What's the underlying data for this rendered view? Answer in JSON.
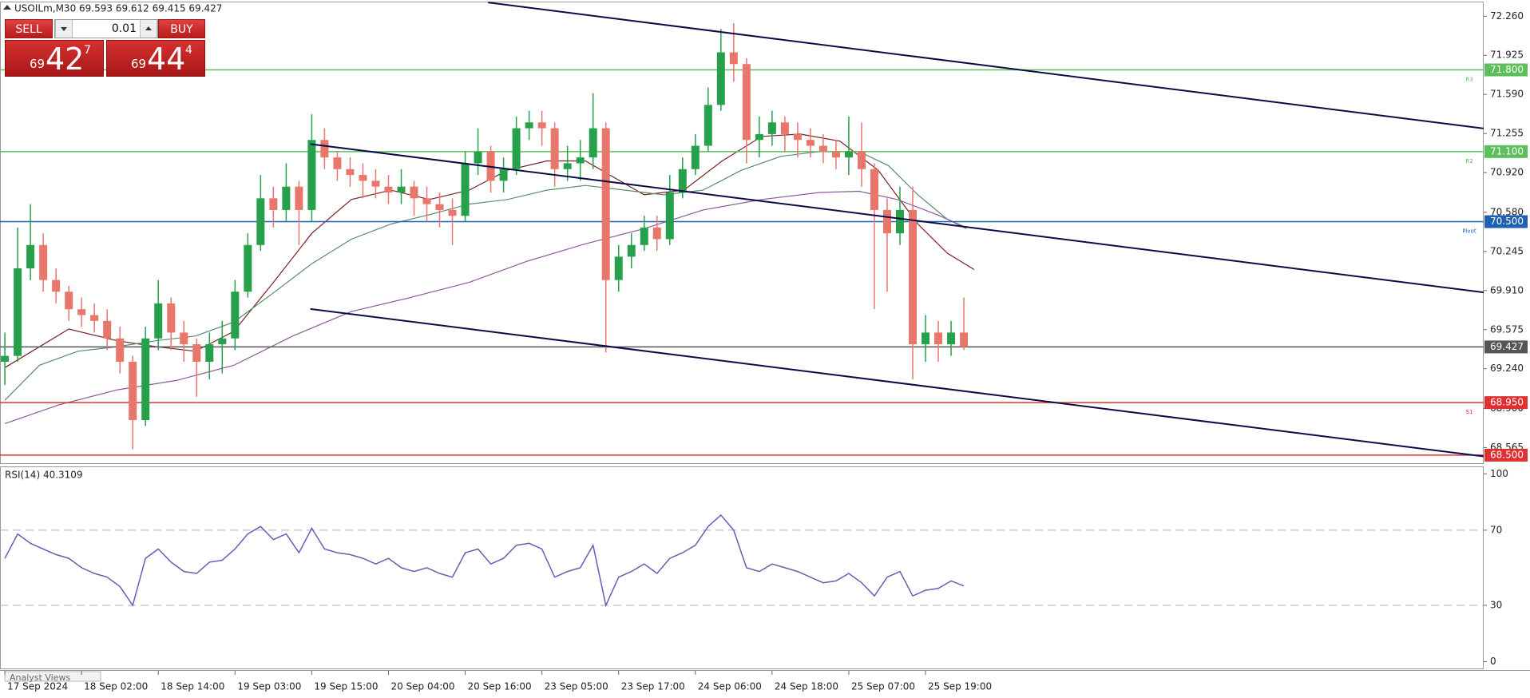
{
  "header": {
    "symbol_line": "USOILm,M30  69.593 69.612 69.415 69.427"
  },
  "trade_panel": {
    "sell_label": "SELL",
    "buy_label": "BUY",
    "lot": "0.01",
    "sell_price": {
      "big": "69",
      "main": "42",
      "small": "7"
    },
    "buy_price": {
      "big": "69",
      "main": "44",
      "small": "4"
    }
  },
  "footer_tab": "Analyst Views",
  "chart_data": [
    {
      "type": "candlestick",
      "up_color": "#26a04a",
      "down_color": "#e8766a",
      "xlim": [
        -0.38,
        115.65
      ],
      "ylim": [
        68.431,
        72.385
      ],
      "yticks": [
        {
          "value": 72.26,
          "label": "72.260"
        },
        {
          "value": 71.925,
          "label": "71.925"
        },
        {
          "value": 71.59,
          "label": "71.590"
        },
        {
          "value": 71.255,
          "label": "71.255"
        },
        {
          "value": 70.92,
          "label": "70.920"
        },
        {
          "value": 70.58,
          "label": "70.580"
        },
        {
          "value": 70.245,
          "label": "70.245"
        },
        {
          "value": 69.91,
          "label": "69.910"
        },
        {
          "value": 69.575,
          "label": "69.575"
        },
        {
          "value": 69.24,
          "label": "69.240"
        },
        {
          "value": 68.9,
          "label": "68.900"
        },
        {
          "value": 68.565,
          "label": "68.565"
        }
      ],
      "ohlc": [
        [
          69.3,
          69.55,
          69.1,
          69.35
        ],
        [
          69.35,
          70.45,
          69.3,
          70.1
        ],
        [
          70.1,
          70.65,
          70.0,
          70.3
        ],
        [
          70.3,
          70.4,
          69.9,
          70.0
        ],
        [
          70.0,
          70.1,
          69.8,
          69.9
        ],
        [
          69.9,
          69.95,
          69.65,
          69.75
        ],
        [
          69.75,
          69.85,
          69.6,
          69.7
        ],
        [
          69.7,
          69.8,
          69.55,
          69.65
        ],
        [
          69.65,
          69.75,
          69.4,
          69.5
        ],
        [
          69.5,
          69.6,
          69.2,
          69.3
        ],
        [
          69.3,
          69.35,
          68.55,
          68.8
        ],
        [
          68.8,
          69.6,
          68.75,
          69.5
        ],
        [
          69.5,
          70.0,
          69.4,
          69.8
        ],
        [
          69.8,
          69.85,
          69.4,
          69.55
        ],
        [
          69.55,
          69.65,
          69.3,
          69.45
        ],
        [
          69.45,
          69.5,
          69.0,
          69.3
        ],
        [
          69.3,
          69.55,
          69.15,
          69.45
        ],
        [
          69.45,
          69.65,
          69.2,
          69.5
        ],
        [
          69.5,
          70.0,
          69.4,
          69.9
        ],
        [
          69.9,
          70.4,
          69.85,
          70.3
        ],
        [
          70.3,
          70.9,
          70.25,
          70.7
        ],
        [
          70.7,
          70.8,
          70.45,
          70.6
        ],
        [
          70.6,
          71.0,
          70.5,
          70.8
        ],
        [
          70.8,
          70.85,
          70.3,
          70.6
        ],
        [
          70.6,
          71.42,
          70.5,
          71.2
        ],
        [
          71.2,
          71.3,
          70.95,
          71.05
        ],
        [
          71.05,
          71.1,
          70.85,
          70.95
        ],
        [
          70.95,
          71.05,
          70.8,
          70.9
        ],
        [
          70.9,
          71.0,
          70.7,
          70.85
        ],
        [
          70.85,
          70.95,
          70.7,
          70.8
        ],
        [
          70.8,
          70.9,
          70.65,
          70.75
        ],
        [
          70.75,
          70.95,
          70.65,
          70.8
        ],
        [
          70.8,
          70.85,
          70.55,
          70.7
        ],
        [
          70.7,
          70.8,
          70.5,
          70.65
        ],
        [
          70.65,
          70.75,
          70.45,
          70.6
        ],
        [
          70.6,
          70.7,
          70.3,
          70.55
        ],
        [
          70.55,
          71.1,
          70.5,
          71.0
        ],
        [
          71.0,
          71.3,
          70.9,
          71.1
        ],
        [
          71.1,
          71.15,
          70.75,
          70.85
        ],
        [
          70.85,
          71.05,
          70.75,
          70.95
        ],
        [
          70.95,
          71.4,
          70.9,
          71.3
        ],
        [
          71.3,
          71.45,
          71.2,
          71.35
        ],
        [
          71.35,
          71.45,
          71.15,
          71.3
        ],
        [
          71.3,
          71.35,
          70.8,
          70.95
        ],
        [
          70.95,
          71.15,
          70.85,
          71.0
        ],
        [
          71.0,
          71.2,
          70.85,
          71.05
        ],
        [
          71.05,
          71.6,
          70.95,
          71.3
        ],
        [
          71.3,
          71.35,
          69.38,
          70.0
        ],
        [
          70.0,
          70.3,
          69.9,
          70.2
        ],
        [
          70.2,
          70.4,
          70.1,
          70.3
        ],
        [
          70.3,
          70.55,
          70.25,
          70.45
        ],
        [
          70.45,
          70.55,
          70.25,
          70.35
        ],
        [
          70.35,
          70.9,
          70.3,
          70.75
        ],
        [
          70.75,
          71.05,
          70.7,
          70.95
        ],
        [
          70.95,
          71.25,
          70.9,
          71.15
        ],
        [
          71.15,
          71.65,
          71.1,
          71.5
        ],
        [
          71.5,
          72.15,
          71.45,
          71.95
        ],
        [
          71.95,
          72.2,
          71.7,
          71.85
        ],
        [
          71.85,
          71.9,
          71.0,
          71.2
        ],
        [
          71.2,
          71.4,
          71.05,
          71.25
        ],
        [
          71.25,
          71.45,
          71.15,
          71.35
        ],
        [
          71.35,
          71.4,
          71.1,
          71.25
        ],
        [
          71.25,
          71.35,
          71.05,
          71.2
        ],
        [
          71.2,
          71.3,
          71.05,
          71.15
        ],
        [
          71.15,
          71.25,
          71.0,
          71.1
        ],
        [
          71.1,
          71.2,
          70.95,
          71.05
        ],
        [
          71.05,
          71.4,
          70.9,
          71.1
        ],
        [
          71.1,
          71.35,
          70.8,
          70.95
        ],
        [
          70.95,
          71.0,
          69.75,
          70.6
        ],
        [
          70.6,
          70.7,
          69.9,
          70.4
        ],
        [
          70.4,
          70.8,
          70.3,
          70.6
        ],
        [
          70.6,
          70.8,
          69.15,
          69.45
        ],
        [
          69.45,
          69.7,
          69.3,
          69.55
        ],
        [
          69.55,
          69.65,
          69.3,
          69.45
        ],
        [
          69.45,
          69.65,
          69.35,
          69.55
        ],
        [
          69.55,
          69.85,
          69.4,
          69.427
        ]
      ],
      "series": [
        {
          "color": "#7a1f1f",
          "x": [
            0,
            5,
            8.8,
            11.8,
            14.9,
            17.9,
            21,
            24,
            27.1,
            30.2,
            33.2,
            36.3,
            39.3,
            42.4,
            45.4,
            50,
            53.1,
            56.1,
            59.2,
            62.2,
            65.3,
            68.3,
            71.4,
            73.7,
            75.8
          ],
          "values": [
            69.25,
            69.58,
            69.48,
            69.43,
            69.39,
            69.56,
            69.98,
            70.4,
            70.69,
            70.77,
            70.69,
            70.77,
            70.94,
            71.02,
            71.02,
            70.73,
            70.77,
            71.02,
            71.23,
            71.25,
            71.19,
            70.94,
            70.48,
            70.23,
            70.09
          ]
        },
        {
          "color": "#5a8a6e",
          "x": [
            0,
            2.7,
            5.7,
            8.8,
            11.8,
            14.9,
            17.9,
            21,
            24,
            27.1,
            30.2,
            33.2,
            36.3,
            39.3,
            42.4,
            45.4,
            48.5,
            51.5,
            54.6,
            57.6,
            60.7,
            63.7,
            66.8,
            69.1,
            71.4,
            73.7,
            75.2
          ],
          "values": [
            68.97,
            69.27,
            69.39,
            69.43,
            69.48,
            69.52,
            69.64,
            69.89,
            70.14,
            70.35,
            70.48,
            70.56,
            70.65,
            70.69,
            70.77,
            70.81,
            70.77,
            70.73,
            70.77,
            70.94,
            71.06,
            71.1,
            71.1,
            70.98,
            70.73,
            70.52,
            70.44
          ]
        },
        {
          "color": "#8e5a9a",
          "x": [
            0,
            4.2,
            8.8,
            13.4,
            17.9,
            22.5,
            27.1,
            31.7,
            36.3,
            40.8,
            45.4,
            50,
            54.6,
            59.2,
            63.7,
            66.8,
            69.8,
            72.9,
            75.2
          ],
          "values": [
            68.77,
            68.93,
            69.06,
            69.14,
            69.27,
            69.52,
            69.73,
            69.85,
            69.98,
            70.16,
            70.31,
            70.44,
            70.6,
            70.69,
            70.75,
            70.76,
            70.69,
            70.56,
            70.45
          ]
        }
      ],
      "trendlines": [
        {
          "color": "#0b0b4a",
          "x": [
            37.79,
            115.65
          ],
          "y": [
            72.377,
            71.298
          ]
        },
        {
          "color": "#0b0b4a",
          "x": [
            23.89,
            115.65
          ],
          "y": [
            71.165,
            69.894
          ]
        },
        {
          "color": "#0b0b4a",
          "x": [
            23.89,
            115.65
          ],
          "y": [
            69.752,
            68.489
          ]
        }
      ],
      "levels": [
        {
          "value": 71.8,
          "label": "71.800",
          "name": "R3",
          "color": "#5cbf5c"
        },
        {
          "value": 71.1,
          "label": "71.100",
          "name": "R2",
          "color": "#5cbf5c"
        },
        {
          "value": 70.5,
          "label": "70.500",
          "name": "Pivot",
          "color": "#1f5fb4"
        },
        {
          "value": 69.427,
          "label": "69.427",
          "color": "#555555"
        },
        {
          "value": 68.95,
          "label": "68.950",
          "name": "S1",
          "color": "#e03030"
        },
        {
          "value": 68.5,
          "label": "68.500",
          "color": "#e03030"
        }
      ]
    },
    {
      "type": "line",
      "title": "RSI(14) 40.3109",
      "color": "#6b5bb5",
      "xlim": [
        -0.38,
        115.65
      ],
      "ylim": [
        -3.6,
        103.1
      ],
      "yticks": [
        100,
        70,
        30,
        0
      ],
      "levels": [
        {
          "value": 70,
          "color": "#b8a6c8"
        },
        {
          "value": 30,
          "color": "#b8a6c8"
        }
      ],
      "values": [
        55,
        68,
        63,
        60,
        57,
        55,
        50,
        47,
        45,
        40,
        30,
        55,
        60,
        53,
        48,
        47,
        53,
        54,
        60,
        68,
        72,
        65,
        68,
        58,
        71,
        60,
        58,
        57,
        55,
        52,
        55,
        50,
        48,
        50,
        47,
        45,
        58,
        60,
        52,
        55,
        62,
        63,
        60,
        45,
        48,
        50,
        62,
        30,
        45,
        48,
        52,
        47,
        55,
        58,
        62,
        72,
        78,
        70,
        50,
        48,
        52,
        50,
        48,
        45,
        42,
        43,
        47,
        42,
        35,
        45,
        48,
        35,
        38,
        39,
        43,
        40.31
      ],
      "xticks": [
        {
          "value": 0,
          "label": "17 Sep 2024"
        },
        {
          "value": 6,
          "label": "18 Sep 02:00"
        },
        {
          "value": 12,
          "label": "18 Sep 14:00"
        },
        {
          "value": 18,
          "label": "19 Sep 03:00"
        },
        {
          "value": 24,
          "label": "19 Sep 15:00"
        },
        {
          "value": 30,
          "label": "20 Sep 04:00"
        },
        {
          "value": 36,
          "label": "20 Sep 16:00"
        },
        {
          "value": 42,
          "label": "23 Sep 05:00"
        },
        {
          "value": 48,
          "label": "23 Sep 17:00"
        },
        {
          "value": 54,
          "label": "24 Sep 06:00"
        },
        {
          "value": 60,
          "label": "24 Sep 18:00"
        },
        {
          "value": 66,
          "label": "25 Sep 07:00"
        },
        {
          "value": 72,
          "label": "25 Sep 19:00"
        }
      ]
    }
  ]
}
